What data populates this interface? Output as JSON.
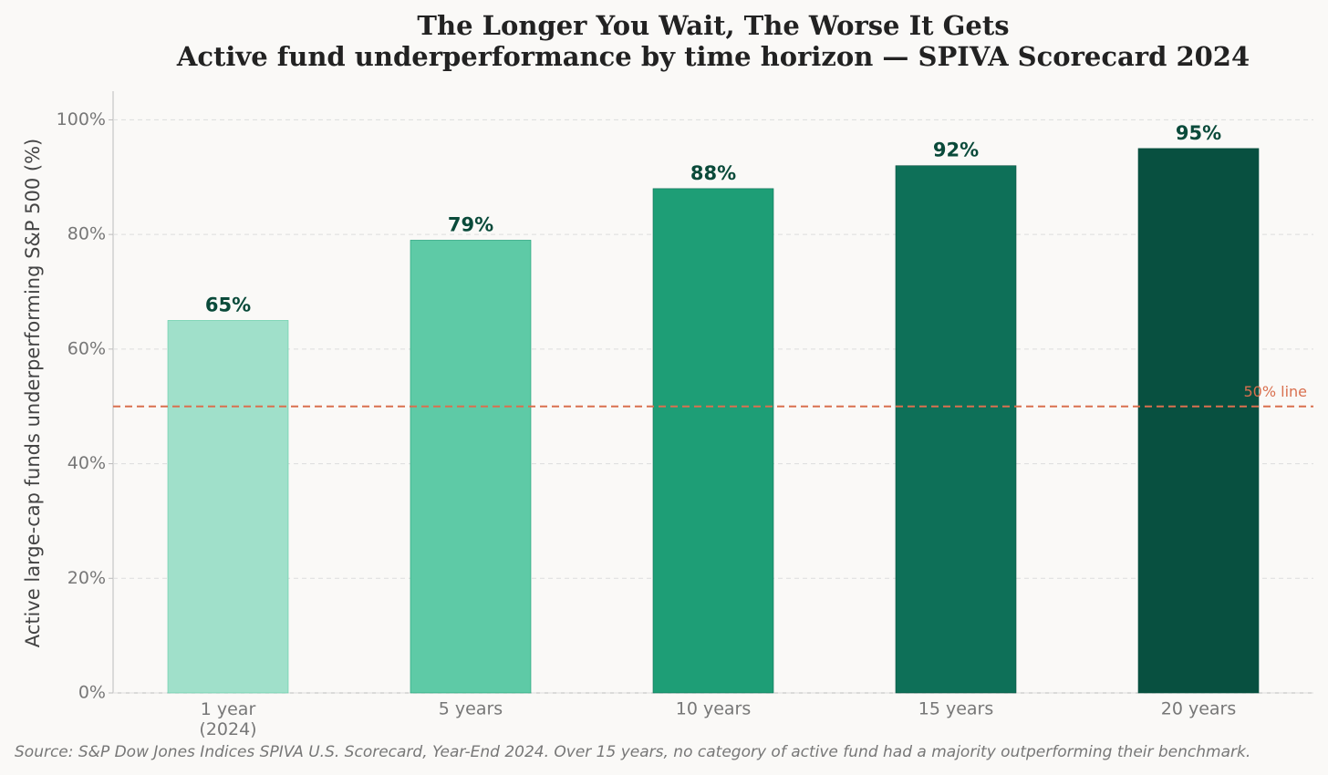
{
  "chart_data": {
    "type": "bar",
    "title": "The Longer You Wait, The Worse It Gets",
    "subtitle": "Active fund underperformance by time horizon — SPIVA Scorecard 2024",
    "y_label": "Active large-cap funds underperforming S&P 500 (%)",
    "categories": [
      "1 year\n(2024)",
      "5 years",
      "10 years",
      "15 years",
      "20 years"
    ],
    "values": [
      65,
      79,
      88,
      92,
      95
    ],
    "value_labels": [
      "65%",
      "79%",
      "88%",
      "92%",
      "95%"
    ],
    "colors": [
      "#a0e0ca",
      "#5ecaa6",
      "#1e9e76",
      "#0e7058",
      "#085040"
    ],
    "ylim": [
      0,
      105
    ],
    "yticks": [
      {
        "value": 0,
        "label": "0%"
      },
      {
        "value": 20,
        "label": "20%"
      },
      {
        "value": 40,
        "label": "40%"
      },
      {
        "value": 60,
        "label": "60%"
      },
      {
        "value": 80,
        "label": "80%"
      },
      {
        "value": 100,
        "label": "100%"
      }
    ],
    "grid": true,
    "reference_line": {
      "value": 50,
      "label": "50% line",
      "color": "#d9704f"
    },
    "note": "Source: S&P Dow Jones Indices SPIVA U.S. Scorecard, Year-End 2024. Over 15 years, no category of active fund had a majority outperforming their benchmark."
  }
}
